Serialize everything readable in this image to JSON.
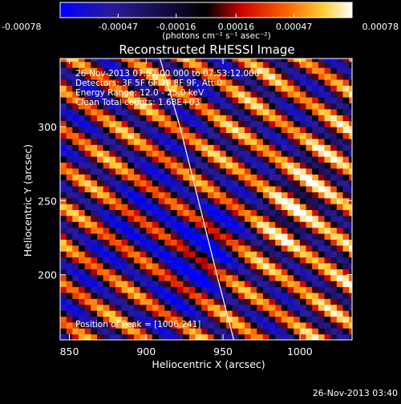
{
  "colorbar": {
    "tick_labels": [
      "-0.00078",
      "-0.00047",
      "-0.00016",
      "0.00016",
      "0.00047",
      "0.00078"
    ],
    "tick_values": [
      -0.00078,
      -0.00047,
      -0.00016,
      0.00016,
      0.00047,
      0.00078
    ],
    "range": [
      -0.00078,
      0.00078
    ],
    "unit_label": "(photons cm⁻² s⁻¹ asec⁻²)",
    "colors": [
      "#0000ff",
      "#2a1b9a",
      "#000000",
      "#cc0000",
      "#ff6600",
      "#ffcc33",
      "#ffffff"
    ]
  },
  "chart_data": {
    "type": "heatmap",
    "title": "Reconstructed RHESSI Image",
    "xlabel": "Heliocentric X (arcsec)",
    "ylabel": "Heliocentric Y (arcsec)",
    "xlim": [
      844,
      1034
    ],
    "ylim": [
      156,
      346
    ],
    "x_ticks": [
      "850",
      "900",
      "950",
      "1000"
    ],
    "x_tick_values": [
      850,
      900,
      950,
      1000
    ],
    "y_ticks": [
      "200",
      "250",
      "300"
    ],
    "y_tick_values": [
      200,
      250,
      300
    ],
    "annotations": [
      "26-Nov-2013 07:52:00.000 to 07:53:12.000",
      "Detectors: 3F 5F 6F 7F 8F 9F, Att 0",
      "Energy Range: 12.0 - 25.0 keV",
      "Clean     Total counts: 1.68E+03"
    ],
    "peak_label": "Position of Peak = [1006,241]",
    "peak": [
      1006,
      241
    ],
    "limb_arc": [
      [
        909,
        346
      ],
      [
        922,
        300
      ],
      [
        934,
        250
      ],
      [
        946,
        200
      ],
      [
        957,
        156
      ]
    ],
    "marker": [
      937,
      213
    ],
    "pattern": {
      "stripe_direction": "upper-left to lower-right",
      "stripe_period_arcsec": 26,
      "min_intensity_region": [
        928,
        220
      ],
      "max_intensity_region": [
        1006,
        241
      ]
    }
  },
  "footer": {
    "timestamp": "26-Nov-2013 03:40"
  }
}
